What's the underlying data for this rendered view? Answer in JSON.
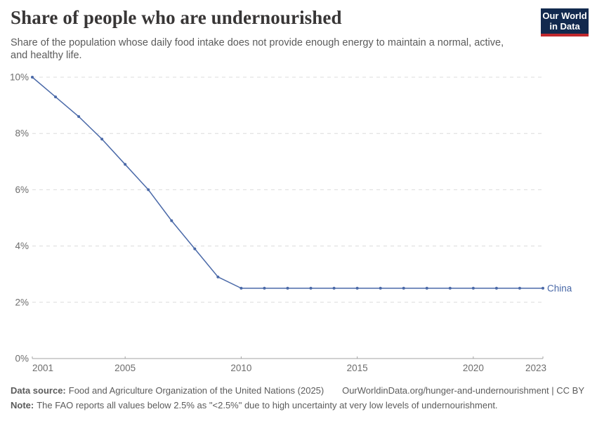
{
  "header": {
    "title": "Share of people who are undernourished",
    "subtitle": "Share of the population whose daily food intake does not provide enough energy to maintain a normal, active,\nand healthy life.",
    "logo": {
      "line1": "Our World",
      "line2": "in Data"
    }
  },
  "chart_data": {
    "type": "line",
    "title": "Share of people who are undernourished",
    "x": [
      2001,
      2002,
      2003,
      2004,
      2005,
      2006,
      2007,
      2008,
      2009,
      2010,
      2011,
      2012,
      2013,
      2014,
      2015,
      2016,
      2017,
      2018,
      2019,
      2020,
      2021,
      2022,
      2023
    ],
    "series": [
      {
        "name": "China",
        "values": [
          10.0,
          9.3,
          8.6,
          7.8,
          6.9,
          6.0,
          4.9,
          3.9,
          2.9,
          2.5,
          2.5,
          2.5,
          2.5,
          2.5,
          2.5,
          2.5,
          2.5,
          2.5,
          2.5,
          2.5,
          2.5,
          2.5,
          2.5
        ]
      }
    ],
    "xlabel": "",
    "ylabel": "",
    "ylim": [
      0,
      10
    ],
    "yticks": [
      0,
      2,
      4,
      6,
      8,
      10
    ],
    "ytick_labels": [
      "0%",
      "2%",
      "4%",
      "6%",
      "8%",
      "10%"
    ],
    "xticks": [
      2001,
      2005,
      2010,
      2015,
      2020,
      2023
    ],
    "grid": "horizontal-dashed",
    "legend_position": "end-of-line-label",
    "markers": true
  },
  "footer": {
    "datasource_label": "Data source:",
    "datasource_value": "Food and Agriculture Organization of the United Nations (2025)",
    "url": "OurWorldinData.org/hunger-and-undernourishment | CC BY",
    "note_label": "Note:",
    "note_text": "The FAO reports all values below 2.5% as \"<2.5%\" due to high uncertainty at very low levels of undernourishment."
  },
  "colors": {
    "series_line": "#4a69a8",
    "grid_line": "#dcdcdc",
    "axis_line": "#a3a3a3",
    "axis_text": "#6e6e6e",
    "title_text": "#383636",
    "subtitle_text": "#5b5b5b",
    "footer_text": "#5b5b5b",
    "logo_bg": "#12294e",
    "logo_accent": "#c0282d"
  }
}
